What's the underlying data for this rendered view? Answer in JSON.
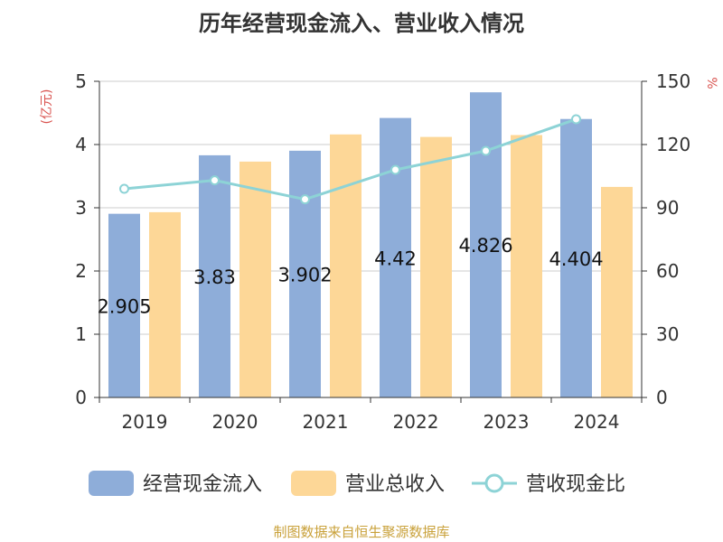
{
  "chart_data": {
    "type": "bar",
    "title": "历年经营现金流入、营业收入情况",
    "categories": [
      "2019",
      "2020",
      "2021",
      "2022",
      "2023",
      "2024"
    ],
    "y_left": {
      "unit": "(亿元)",
      "ylim": [
        0,
        5
      ],
      "ticks": [
        "0",
        "1",
        "2",
        "3",
        "4",
        "5"
      ]
    },
    "y_right": {
      "unit": "%",
      "ylim": [
        0,
        150
      ],
      "ticks": [
        "0",
        "30",
        "60",
        "90",
        "120",
        "150"
      ]
    },
    "series": [
      {
        "name": "经营现金流入",
        "kind": "bar",
        "axis": "left",
        "color": "#8eadd9",
        "values": [
          2.905,
          3.83,
          3.902,
          4.42,
          4.826,
          4.404
        ],
        "labels": [
          "2.905",
          "3.83",
          "3.902",
          "4.42",
          "4.826",
          "4.404"
        ]
      },
      {
        "name": "营业总收入",
        "kind": "bar",
        "axis": "left",
        "color": "#fdd797",
        "values": [
          2.93,
          3.73,
          4.16,
          4.12,
          4.15,
          3.33
        ]
      },
      {
        "name": "营收现金比",
        "kind": "line",
        "axis": "right",
        "color": "#8dd3d6",
        "values": [
          99,
          103,
          94,
          108,
          117,
          132
        ]
      }
    ],
    "grid": true,
    "legend": "bottom"
  },
  "source": "制图数据来自恒生聚源数据库"
}
